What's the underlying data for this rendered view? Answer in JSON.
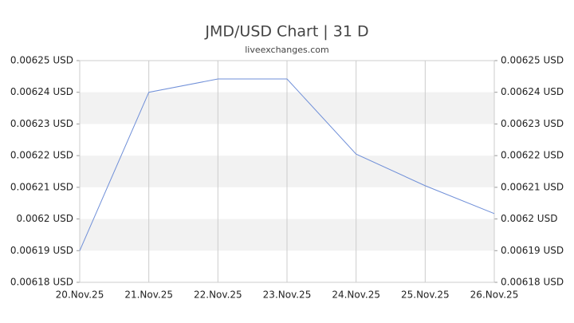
{
  "chart_data": {
    "type": "line",
    "title": "JMD/USD Chart | 31 D",
    "subtitle": "liveexchanges.com",
    "categories": [
      "20.Nov.25",
      "21.Nov.25",
      "22.Nov.25",
      "23.Nov.25",
      "24.Nov.25",
      "25.Nov.25",
      "26.Nov.25"
    ],
    "values": [
      0.00619,
      0.00624,
      0.0062442,
      0.0062442,
      0.0062205,
      0.0062105,
      0.0062017
    ],
    "color": "#6f8fd8",
    "ylim": [
      0.00618,
      0.00625
    ],
    "yticks": [
      {
        "value": 0.00618,
        "label": "0.00618 USD"
      },
      {
        "value": 0.00619,
        "label": "0.00619 USD"
      },
      {
        "value": 0.0062,
        "label": "0.0062 USD"
      },
      {
        "value": 0.00621,
        "label": "0.00621 USD"
      },
      {
        "value": 0.00622,
        "label": "0.00622 USD"
      },
      {
        "value": 0.00623,
        "label": "0.00623 USD"
      },
      {
        "value": 0.00624,
        "label": "0.00624 USD"
      },
      {
        "value": 0.00625,
        "label": "0.00625 USD"
      }
    ],
    "y2lim": [
      0.00618,
      0.00625
    ],
    "y2ticks": [
      {
        "value": 0.00618,
        "label": "0.00618 USD"
      },
      {
        "value": 0.00619,
        "label": "0.00619 USD"
      },
      {
        "value": 0.0062,
        "label": "0.0062 USD"
      },
      {
        "value": 0.00621,
        "label": "0.00621 USD"
      },
      {
        "value": 0.00622,
        "label": "0.00622 USD"
      },
      {
        "value": 0.00623,
        "label": "0.00623 USD"
      },
      {
        "value": 0.00624,
        "label": "0.00624 USD"
      },
      {
        "value": 0.00625,
        "label": "0.00625 USD"
      }
    ],
    "grid": true
  }
}
